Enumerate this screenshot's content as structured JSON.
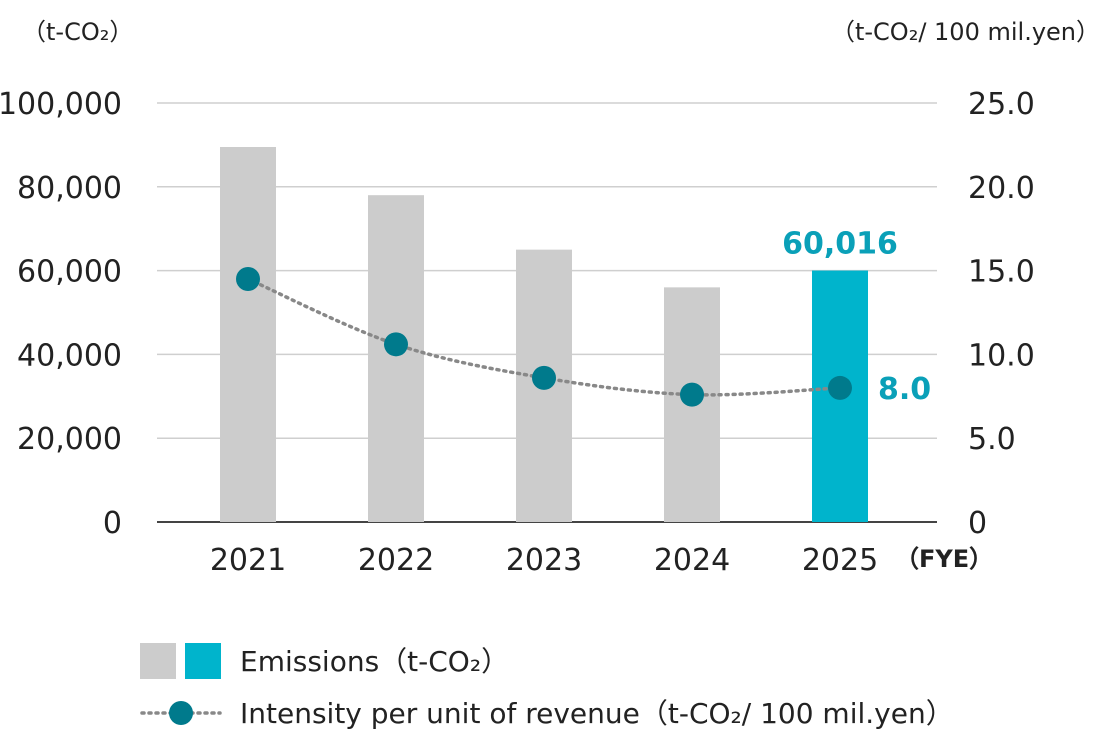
{
  "chart_data": {
    "type": "bar+line",
    "categories": [
      "2021",
      "2022",
      "2023",
      "2024",
      "2025"
    ],
    "x_unit_label": "（FYE）",
    "left_axis": {
      "unit_label": "（t-CO₂）",
      "ylim": [
        0,
        100000
      ],
      "ticks": [
        "0",
        "20,000",
        "40,000",
        "60,000",
        "80,000",
        "100,000"
      ],
      "tick_values": [
        0,
        20000,
        40000,
        60000,
        80000,
        100000
      ]
    },
    "right_axis": {
      "unit_label": "（t-CO₂/ 100 mil.yen）",
      "ylim": [
        0,
        25
      ],
      "ticks": [
        "0",
        "5.0",
        "10.0",
        "15.0",
        "20.0",
        "25.0"
      ],
      "tick_values": [
        0,
        5,
        10,
        15,
        20,
        25
      ]
    },
    "series": [
      {
        "name": "Emissions（t-CO₂）",
        "kind": "bar",
        "axis": "left",
        "values": [
          89500,
          78000,
          65000,
          56000,
          60016
        ],
        "colors": [
          "#cccccc",
          "#cccccc",
          "#cccccc",
          "#cccccc",
          "#00b4cc"
        ],
        "highlight_label": {
          "index": 4,
          "text": "60,016"
        }
      },
      {
        "name": "Intensity per unit of revenue（t-CO₂/ 100 mil.yen）",
        "kind": "line",
        "axis": "right",
        "style": "dotted",
        "values": [
          14.5,
          10.6,
          8.6,
          7.6,
          8.0
        ],
        "line_color": "#888888",
        "marker_color": "#007a8c",
        "highlight_label": {
          "index": 4,
          "text": "8.0"
        }
      }
    ],
    "grid": true,
    "legend_placement": "bottom-left",
    "colors": {
      "bar_gray": "#cccccc",
      "bar_highlight": "#00b4cc",
      "marker": "#007a8c",
      "line": "#888888",
      "grid": "#cfcfcf",
      "axis": "#444444",
      "label_highlight": "#0aa0b8"
    }
  }
}
